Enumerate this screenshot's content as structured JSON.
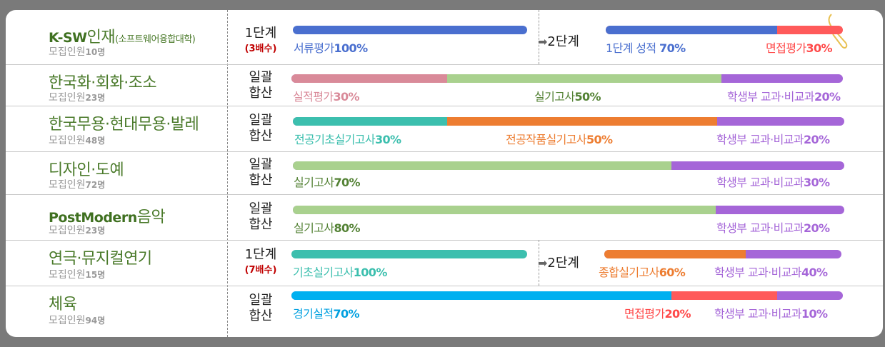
{
  "colors": {
    "blue": "#4a6fcf",
    "red": "#ff5a5a",
    "pink": "#d98a99",
    "green": "#a9d18e",
    "teal": "#3cbfae",
    "orange": "#ed7d31",
    "purple": "#a566d8",
    "cyan": "#00b0f0",
    "darkgreen": "#548235"
  },
  "rows": [
    {
      "name_bold": "K-SW",
      "name": "인재",
      "name_small": "(소프트웨어융합대학)",
      "sub_prefix": "모집인원",
      "sub_count": "10명",
      "method1": "1단계",
      "method2": "(3배수)",
      "stage2_label": "2단계",
      "labels": [
        "서류평가",
        "100%",
        "1단계 성적",
        "70%",
        "면접평가",
        "30%"
      ]
    },
    {
      "name": "한국화·회화·조소",
      "sub_prefix": "모집인원",
      "sub_count": "23명",
      "method1": "일괄",
      "method2": "합산",
      "labels": [
        "실적평가",
        "30%",
        "실기고사",
        "50%",
        "학생부 교과·비교과",
        "20%"
      ]
    },
    {
      "name": "한국무용·현대무용·발레",
      "sub_prefix": "모집인원",
      "sub_count": "48명",
      "method1": "일괄",
      "method2": "합산",
      "labels": [
        "전공기초실기고사",
        "30%",
        "전공작품실기고사",
        "50%",
        "학생부 교과·비교과",
        "20%"
      ]
    },
    {
      "name": "디자인·도예",
      "sub_prefix": "모집인원",
      "sub_count": "72명",
      "method1": "일괄",
      "method2": "합산",
      "labels": [
        "실기고사",
        "70%",
        "학생부 교과·비교과",
        "30%"
      ]
    },
    {
      "name_bold": "PostModern",
      "name": "음악",
      "sub_prefix": "모집인원",
      "sub_count": "23명",
      "method1": "일괄",
      "method2": "합산",
      "labels": [
        "실기고사",
        "80%",
        "학생부 교과·비교과",
        "20%"
      ]
    },
    {
      "name": "연극·뮤지컬연기",
      "sub_prefix": "모집인원",
      "sub_count": "15명",
      "method1": "1단계",
      "method2": "(7배수)",
      "stage2_label": "2단계",
      "labels": [
        "기초실기고사",
        "100%",
        "종합실기고사",
        "60%",
        "학생부 교과·비교과",
        "40%"
      ]
    },
    {
      "name": "체육",
      "sub_prefix": "모집인원",
      "sub_count": "94명",
      "method1": "일괄",
      "method2": "합산",
      "labels": [
        "경기실적",
        "70%",
        "면접평가",
        "20%",
        "학생부 교과·비교과",
        "10%"
      ]
    }
  ]
}
